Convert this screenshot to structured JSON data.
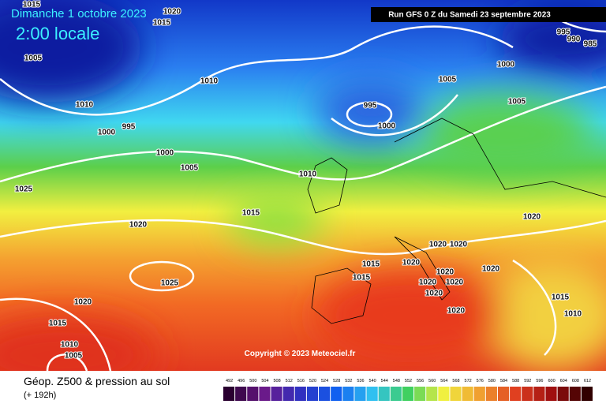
{
  "header": {
    "date": "Dimanche 1 octobre 2023",
    "time": "2:00 locale",
    "run": "Run GFS 0 Z du Samedi 23 septembre 2023"
  },
  "copyright": "Copyright © 2023 Meteociel.fr",
  "footer": {
    "title": "Géop. Z500 & pression au sol",
    "lead": "(+ 192h)"
  },
  "legend": {
    "values": [
      492,
      496,
      500,
      504,
      508,
      512,
      516,
      520,
      524,
      528,
      532,
      536,
      540,
      544,
      548,
      552,
      556,
      560,
      564,
      568,
      572,
      576,
      580,
      584,
      588,
      592,
      596,
      600,
      604,
      608,
      612
    ]
  },
  "isobar_labels": [
    "1015",
    "1020",
    "1015",
    "1005",
    "1010",
    "1010",
    "995",
    "1000",
    "995",
    "1000",
    "1005",
    "1000",
    "1005",
    "995",
    "990",
    "985",
    "1000",
    "1005",
    "1010",
    "1025",
    "1015",
    "1020",
    "1020",
    "1020",
    "1020",
    "1015",
    "1020",
    "1015",
    "1020",
    "1020",
    "1020",
    "1020",
    "1020",
    "1025",
    "1020",
    "1015",
    "1010",
    "1020",
    "1015",
    "1010",
    "1005"
  ]
}
